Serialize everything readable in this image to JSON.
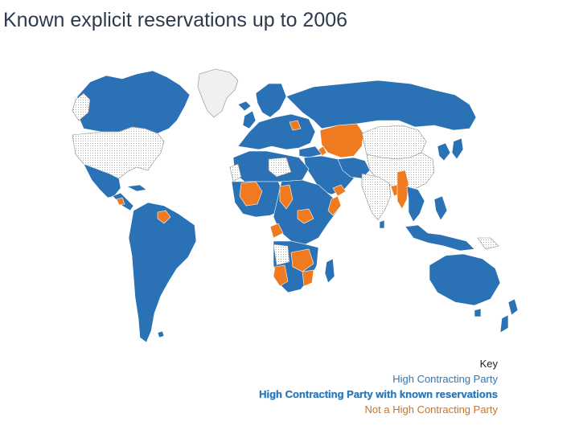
{
  "title": "Known explicit reservations up to 2006",
  "colors": {
    "party": "#2a72b5",
    "reservation": "#ef7a1f",
    "not_party_pattern": "#bdbdbd",
    "greenland": "#f0f0f0",
    "border": "#ffffff"
  },
  "key": {
    "heading": "Key",
    "items": [
      {
        "label": "High Contracting Party",
        "status": "party"
      },
      {
        "label": "High Contracting Party with known reservations",
        "status": "reservation"
      },
      {
        "label": "Not a High Contracting Party",
        "status": "not_party"
      }
    ]
  }
}
